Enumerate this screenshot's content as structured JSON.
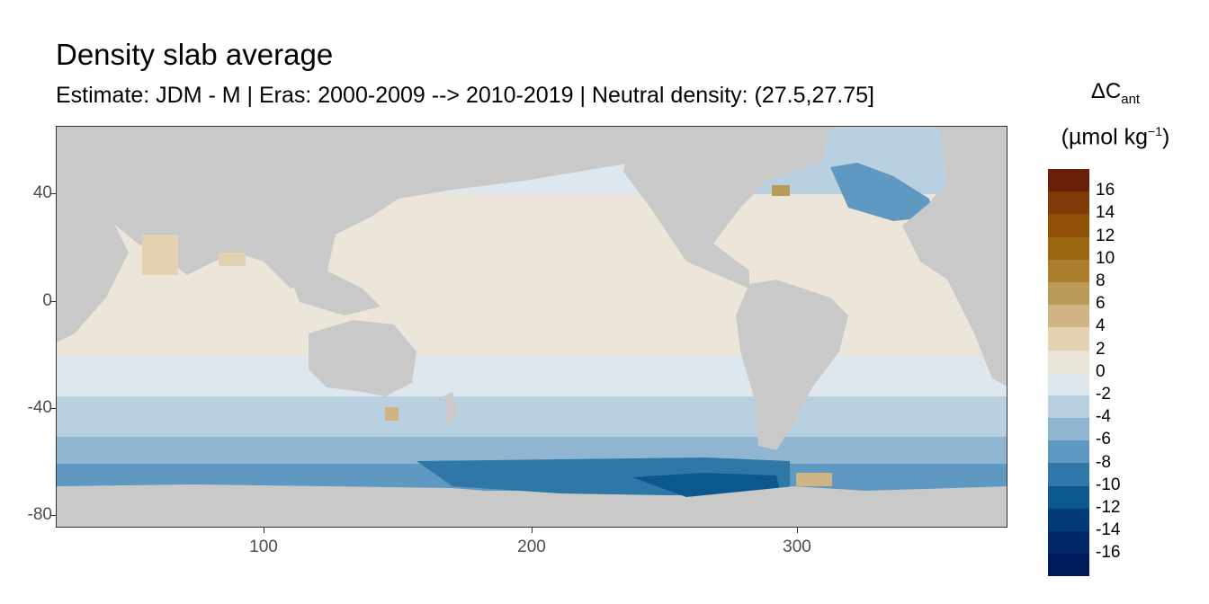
{
  "title": "Density slab average",
  "subtitle": "Estimate: JDM - M | Eras: 2000-2009 --> 2010-2019 | Neutral density: (27.5,27.75]",
  "legend": {
    "title_main": "ΔC",
    "title_sub": "ant",
    "unit_prefix": "(µmol kg",
    "unit_sup": "−1",
    "unit_suffix": ")",
    "colors": [
      "#67200a",
      "#7f3a08",
      "#8f5008",
      "#9b6410",
      "#ab7e2e",
      "#bb9a58",
      "#cfb486",
      "#e3d1b2",
      "#ece6da",
      "#dde7ed",
      "#b8d0e0",
      "#8fb5d1",
      "#5f98c0",
      "#2f77a7",
      "#0b578e",
      "#033b78",
      "#022868",
      "#001a5a"
    ],
    "labels": [
      "16",
      "14",
      "12",
      "10",
      "8",
      "6",
      "4",
      "2",
      "0",
      "-2",
      "-4",
      "-6",
      "-8",
      "-10",
      "-12",
      "-14",
      "-16"
    ]
  },
  "axes": {
    "y_ticks": [
      "40",
      "0",
      "-40",
      "-80"
    ],
    "x_ticks": [
      "100",
      "200",
      "300"
    ]
  },
  "chart_data": {
    "type": "heatmap",
    "title": "Density slab average",
    "subtitle": "Estimate: JDM - M | Eras: 2000-2009 --> 2010-2019 | Neutral density: (27.5,27.75]",
    "xlabel": "",
    "ylabel": "",
    "x_range": [
      22,
      382
    ],
    "y_range": [
      -85,
      65
    ],
    "x_ticks": [
      100,
      200,
      300
    ],
    "y_ticks": [
      40,
      0,
      -40,
      -80
    ],
    "color_scale": {
      "min": -16,
      "max": 16,
      "step": 2
    },
    "zonal_bands": [
      {
        "lat_from": 65,
        "lat_to": 40,
        "value_pacific": -1,
        "value_atlantic": -3
      },
      {
        "lat_from": 40,
        "lat_to": -20,
        "value": 1
      },
      {
        "lat_from": -20,
        "lat_to": -35,
        "value": -1
      },
      {
        "lat_from": -35,
        "lat_to": -50,
        "value": -3
      },
      {
        "lat_from": -50,
        "lat_to": -60,
        "value": -5
      },
      {
        "lat_from": -60,
        "lat_to": -72,
        "value": -8
      }
    ]
  }
}
